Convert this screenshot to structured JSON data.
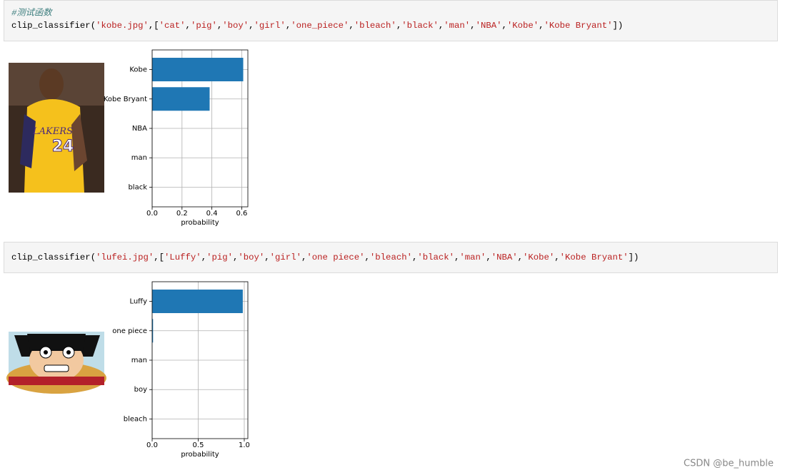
{
  "cells": [
    {
      "comment": "#测试函数",
      "code": "clip_classifier('kobe.jpg',['cat','pig','boy','girl','one_piece','bleach','black','man','NBA','Kobe','Kobe Bryant'])"
    },
    {
      "code": "clip_classifier('lufei.jpg',['Luffy','pig','boy','girl','one piece','bleach','black','man','NBA','Kobe','Kobe Bryant'])"
    }
  ],
  "chart_data": [
    {
      "type": "barh",
      "categories": [
        "Kobe",
        "Kobe Bryant",
        "NBA",
        "man",
        "black"
      ],
      "values": [
        0.61,
        0.385,
        0,
        0,
        0
      ],
      "color": "#1f77b4",
      "xlim": [
        0,
        0.641
      ],
      "xticks": [
        {
          "value": 0,
          "label": "0.0"
        },
        0.2,
        0.4,
        0.6
      ],
      "xlabel": "probability",
      "grid": true
    },
    {
      "type": "barh",
      "categories": [
        "Luffy",
        "one piece",
        "man",
        "boy",
        "bleach"
      ],
      "values": [
        0.984,
        0.01,
        0,
        0,
        0
      ],
      "color": "#1f77b4",
      "xlim": [
        0,
        1.039
      ],
      "xticks": [
        {
          "value": 0,
          "label": "0.0"
        },
        0.5,
        {
          "value": 1,
          "label": "1.0"
        }
      ],
      "xlabel": "probability",
      "grid": true
    }
  ],
  "watermark": "CSDN @be_humble"
}
